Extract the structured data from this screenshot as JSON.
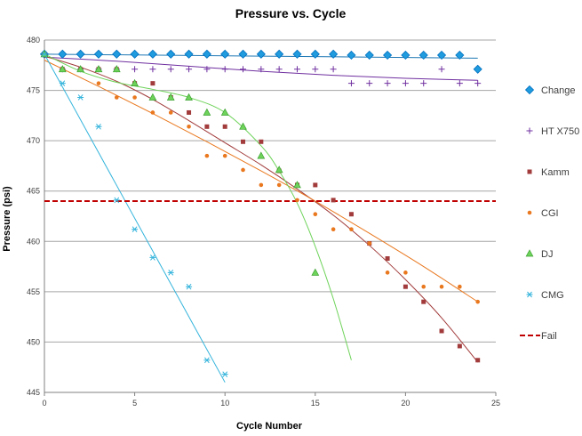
{
  "chart_data": {
    "type": "scatter",
    "title": "Pressure vs. Cycle",
    "xlabel": "Cycle Number",
    "ylabel": "Pressure (psi)",
    "xlim": [
      0,
      25
    ],
    "ylim": [
      445,
      480
    ],
    "xticks": [
      0,
      5,
      10,
      15,
      20,
      25
    ],
    "yticks": [
      445,
      450,
      455,
      460,
      465,
      470,
      475,
      480
    ],
    "grid": "horizontal",
    "legend": "right",
    "fail_threshold": 464,
    "series": [
      {
        "name": "Change",
        "marker": "diamond",
        "color": "#1f9bde",
        "stroke": "#0070c0",
        "x": [
          0,
          1,
          2,
          3,
          4,
          5,
          6,
          7,
          8,
          9,
          10,
          11,
          12,
          13,
          14,
          15,
          16,
          17,
          18,
          19,
          20,
          21,
          22,
          23,
          24
        ],
        "y": [
          478.6,
          478.6,
          478.6,
          478.6,
          478.6,
          478.6,
          478.6,
          478.6,
          478.6,
          478.6,
          478.6,
          478.6,
          478.6,
          478.6,
          478.6,
          478.6,
          478.6,
          478.5,
          478.5,
          478.5,
          478.5,
          478.5,
          478.5,
          478.5,
          477.1
        ],
        "trend": [
          [
            0,
            478.6
          ],
          [
            24,
            478.2
          ]
        ],
        "trend_color": "#1f78b4"
      },
      {
        "name": "HT X750",
        "marker": "plus",
        "color": "#7030a0",
        "x": [
          0,
          1,
          2,
          3,
          4,
          5,
          6,
          7,
          8,
          9,
          10,
          11,
          12,
          13,
          14,
          15,
          16,
          17,
          18,
          19,
          20,
          21,
          22,
          23,
          24
        ],
        "y": [
          478.5,
          477.1,
          477.1,
          477.1,
          477.1,
          477.1,
          477.1,
          477.1,
          477.1,
          477.1,
          477.1,
          477.1,
          477.1,
          477.1,
          477.1,
          477.1,
          477.1,
          475.7,
          475.7,
          475.7,
          475.7,
          475.7,
          477.1,
          475.7,
          475.7
        ],
        "trend": [
          [
            0,
            478.3
          ],
          [
            4,
            477.9
          ],
          [
            8,
            477.4
          ],
          [
            12,
            476.9
          ],
          [
            16,
            476.5
          ],
          [
            20,
            476.2
          ],
          [
            24,
            476.0
          ]
        ],
        "trend_color": "#7030a0"
      },
      {
        "name": "Kamm",
        "marker": "square",
        "color": "#a23b3b",
        "x": [
          0,
          1,
          2,
          3,
          4,
          5,
          6,
          7,
          8,
          9,
          10,
          11,
          12,
          13,
          14,
          15,
          16,
          17,
          18,
          19,
          20,
          21,
          22,
          23,
          24
        ],
        "y": [
          478.6,
          477.1,
          477.1,
          477.1,
          477.1,
          475.7,
          475.7,
          474.3,
          472.8,
          471.4,
          471.4,
          469.9,
          469.9,
          467.0,
          465.6,
          465.6,
          464.1,
          462.7,
          459.8,
          458.3,
          455.5,
          454.0,
          451.1,
          449.6,
          448.2
        ],
        "trend": [
          [
            0,
            478.4
          ],
          [
            2,
            477.3
          ],
          [
            4,
            475.9
          ],
          [
            6,
            474.1
          ],
          [
            8,
            472.0
          ],
          [
            10,
            469.8
          ],
          [
            12,
            467.6
          ],
          [
            14,
            465.2
          ],
          [
            16,
            462.6
          ],
          [
            18,
            459.6
          ],
          [
            20,
            456.2
          ],
          [
            22,
            452.4
          ],
          [
            24,
            448.0
          ]
        ],
        "trend_color": "#a23b3b"
      },
      {
        "name": "CGI",
        "marker": "circle",
        "color": "#e9781f",
        "x": [
          0,
          1,
          2,
          3,
          4,
          5,
          6,
          7,
          8,
          9,
          10,
          11,
          12,
          13,
          14,
          15,
          16,
          17,
          18,
          19,
          20,
          21,
          22,
          23,
          24
        ],
        "y": [
          478.6,
          477.1,
          477.1,
          475.7,
          474.3,
          474.3,
          472.8,
          472.8,
          471.4,
          468.5,
          468.5,
          467.1,
          465.6,
          465.6,
          464.1,
          462.7,
          461.2,
          461.2,
          459.8,
          456.9,
          456.9,
          455.5,
          455.5,
          455.5,
          454.0
        ],
        "trend": [
          [
            0,
            478.0
          ],
          [
            3,
            475.4
          ],
          [
            6,
            472.7
          ],
          [
            9,
            469.9
          ],
          [
            12,
            467.0
          ],
          [
            15,
            464.0
          ],
          [
            18,
            460.8
          ],
          [
            21,
            457.5
          ],
          [
            24,
            454.0
          ]
        ],
        "trend_color": "#e9781f"
      },
      {
        "name": "DJ",
        "marker": "triangle",
        "color": "#6ed35a",
        "stroke": "#3aa02f",
        "x": [
          0,
          1,
          2,
          3,
          4,
          5,
          6,
          7,
          8,
          9,
          10,
          11,
          12,
          13,
          14,
          15
        ],
        "y": [
          478.6,
          477.1,
          477.1,
          477.1,
          477.1,
          475.7,
          474.3,
          474.3,
          474.3,
          472.8,
          472.8,
          471.4,
          468.5,
          467.1,
          465.6,
          456.9
        ],
        "trend": [
          [
            0,
            478.6
          ],
          [
            2,
            476.9
          ],
          [
            4,
            475.8
          ],
          [
            6,
            475.1
          ],
          [
            8,
            474.3
          ],
          [
            10,
            472.8
          ],
          [
            12,
            469.5
          ],
          [
            13,
            467.0
          ],
          [
            14,
            463.8
          ],
          [
            15,
            459.5
          ],
          [
            16,
            454.3
          ],
          [
            17,
            448.2
          ]
        ],
        "trend_color": "#6ed35a"
      },
      {
        "name": "CMG",
        "marker": "asterisk",
        "color": "#34b4dc",
        "x": [
          0,
          1,
          2,
          3,
          4,
          5,
          6,
          7,
          8,
          9,
          10
        ],
        "y": [
          478.6,
          475.7,
          474.3,
          471.4,
          464.1,
          461.2,
          458.4,
          456.9,
          455.5,
          448.2,
          446.8
        ],
        "trend": [
          [
            0,
            478.6
          ],
          [
            10,
            446.0
          ]
        ],
        "trend_color": "#34b4dc"
      },
      {
        "name": "Fail",
        "marker": "dash",
        "color": "#c00000"
      }
    ]
  }
}
